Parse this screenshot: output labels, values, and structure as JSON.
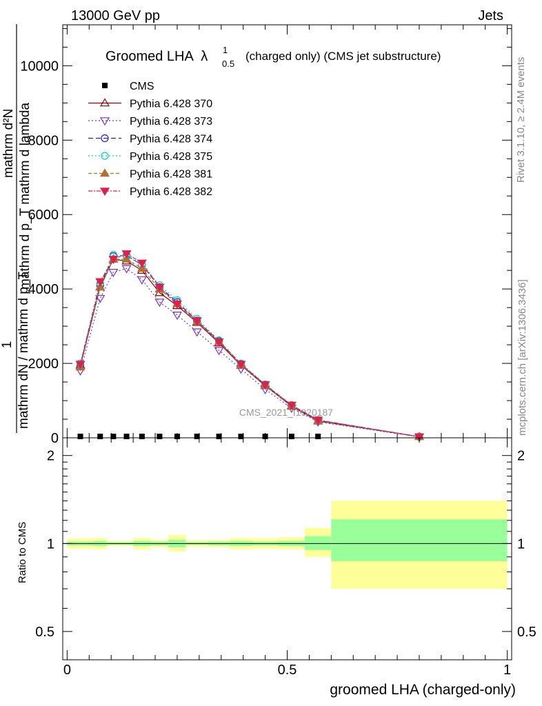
{
  "header": {
    "energy_label": "13000 GeV pp",
    "category_label": "Jets"
  },
  "side_labels": {
    "rivet": "Rivet 3.1.10, ≥ 2.4M events",
    "mcplots": "mcplots.cern.ch [arXiv:1306.3436]"
  },
  "watermark": "CMS_2021_I1920187",
  "chart_data": [
    {
      "type": "line",
      "title": "Groomed LHA λ¹₀.₅ (charged only) (CMS jet substructure)",
      "title_main": "Groomed LHA",
      "title_lambda": "λ",
      "title_sup": "1",
      "title_sub": "0.5",
      "title_rest": "(charged only) (CMS jet substructure)",
      "ylabel_num": "mathrm d²N",
      "ylabel_den": "mathrm d p_T mathrm d lambda",
      "ylabel_prefix_num": "1",
      "ylabel_prefix_den": "mathrm dN / mathrm d p_T",
      "xlim": [
        -0.01,
        1.01
      ],
      "ylim": [
        0,
        11100
      ],
      "yticks": [
        0,
        2000,
        4000,
        6000,
        8000,
        10000
      ],
      "ytick_labels": [
        "0",
        "2000",
        "4000",
        "6000",
        "8000",
        "10000"
      ],
      "legend_position": "top-left",
      "x": [
        0.03,
        0.075,
        0.105,
        0.135,
        0.17,
        0.21,
        0.25,
        0.295,
        0.345,
        0.395,
        0.45,
        0.51,
        0.57,
        0.8
      ],
      "series": [
        {
          "name": "CMS",
          "color": "#000000",
          "marker": "square",
          "values": [
            2,
            5,
            9,
            12,
            14,
            16,
            18,
            20,
            21,
            22,
            24,
            26,
            28,
            5
          ]
        },
        {
          "name": "Pythia 6.428 370",
          "color": "#8b0000",
          "marker": "triangle-open",
          "dash": "",
          "values": [
            1950,
            4050,
            4800,
            4750,
            4500,
            3900,
            3550,
            3100,
            2550,
            1950,
            1400,
            850,
            450,
            30
          ]
        },
        {
          "name": "Pythia 6.428 373",
          "color": "#7a2fcf",
          "marker": "triangle-down-open",
          "dash": "2,3",
          "values": [
            1800,
            3750,
            4450,
            4550,
            4250,
            3650,
            3300,
            2850,
            2350,
            1850,
            1300,
            800,
            430,
            25
          ]
        },
        {
          "name": "Pythia 6.428 374",
          "color": "#1f1fd0",
          "marker": "circle-open",
          "dash": "7,4",
          "values": [
            1950,
            4100,
            4880,
            4900,
            4650,
            4050,
            3650,
            3150,
            2600,
            1980,
            1420,
            870,
            470,
            30
          ]
        },
        {
          "name": "Pythia 6.428 375",
          "color": "#00cfcf",
          "marker": "circle-open",
          "dash": "2,3",
          "values": [
            2000,
            4150,
            4920,
            4880,
            4650,
            4100,
            3700,
            3200,
            2620,
            2000,
            1440,
            880,
            480,
            32
          ]
        },
        {
          "name": "Pythia 6.428 381",
          "color": "#b07030",
          "marker": "triangle-filled",
          "dash": "5,3",
          "values": [
            1900,
            4050,
            4800,
            4800,
            4550,
            4000,
            3600,
            3120,
            2580,
            1960,
            1410,
            860,
            460,
            30
          ]
        },
        {
          "name": "Pythia 6.428 382",
          "color": "#e0204a",
          "marker": "triangle-down-filled",
          "dash": "6,2,2,2",
          "values": [
            1980,
            4200,
            4800,
            4950,
            4700,
            4050,
            3600,
            3150,
            2580,
            1980,
            1430,
            880,
            480,
            30
          ]
        }
      ]
    },
    {
      "type": "area",
      "ylabel": "Ratio to CMS",
      "xlabel": "groomed LHA (charged-only)",
      "xlim": [
        -0.01,
        1.01
      ],
      "xticks": [
        0,
        0.5,
        1
      ],
      "xtick_labels": [
        "0",
        "0.5",
        "1"
      ],
      "ylim": [
        0.4,
        2.3
      ],
      "yscale": "log",
      "yticks": [
        0.5,
        1,
        2
      ],
      "ytick_labels": [
        "0.5",
        "1",
        "2"
      ],
      "reference_line": 1,
      "bands": {
        "edges": [
          0.0,
          0.06,
          0.09,
          0.12,
          0.15,
          0.19,
          0.23,
          0.27,
          0.32,
          0.37,
          0.42,
          0.48,
          0.54,
          0.6,
          1.0
        ],
        "inner_color": "#99ff99",
        "outer_color": "#ffff99",
        "inner": [
          [
            0.985,
            1.015
          ],
          [
            0.98,
            1.02
          ],
          [
            0.99,
            1.01
          ],
          [
            0.99,
            1.01
          ],
          [
            0.98,
            1.02
          ],
          [
            0.985,
            1.015
          ],
          [
            0.97,
            1.03
          ],
          [
            0.99,
            1.01
          ],
          [
            0.985,
            1.015
          ],
          [
            0.98,
            1.02
          ],
          [
            0.985,
            1.015
          ],
          [
            0.98,
            1.02
          ],
          [
            0.95,
            1.06
          ],
          [
            0.87,
            1.21
          ]
        ],
        "outer": [
          [
            0.96,
            1.04
          ],
          [
            0.955,
            1.045
          ],
          [
            0.98,
            1.02
          ],
          [
            0.98,
            1.02
          ],
          [
            0.955,
            1.045
          ],
          [
            0.97,
            1.03
          ],
          [
            0.94,
            1.07
          ],
          [
            0.975,
            1.025
          ],
          [
            0.97,
            1.03
          ],
          [
            0.955,
            1.045
          ],
          [
            0.96,
            1.04
          ],
          [
            0.955,
            1.05
          ],
          [
            0.9,
            1.13
          ],
          [
            0.7,
            1.4
          ]
        ]
      }
    }
  ]
}
